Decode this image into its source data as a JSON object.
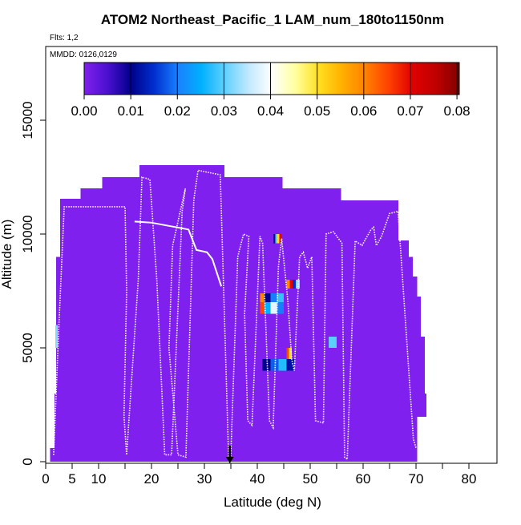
{
  "chart_data": {
    "type": "curtain",
    "title": "ATOM2 Northeast_Pacific_1 LAM_num_180to1150nm",
    "subtitle": "Flts: 1,2",
    "annotation": "MMDD: 0126,0129",
    "xlabel": "Latitude (deg N)",
    "ylabel": "Altitude (m)",
    "xlim": [
      0,
      85.3
    ],
    "ylim": [
      0,
      18240
    ],
    "xticks": [
      0,
      5,
      10,
      20,
      30,
      40,
      50,
      60,
      70,
      80
    ],
    "xminor_ticks": [
      15,
      25,
      35,
      45,
      55,
      65,
      75
    ],
    "yticks": [
      0,
      5000,
      10000,
      15000
    ],
    "arrow_x": 34.8,
    "colorbar": {
      "clim": [
        0,
        0.0805
      ],
      "colors": [
        "#8020ee",
        "#4a10d0",
        "#00008b",
        "#0030d0",
        "#1a80ff",
        "#00b0ff",
        "#60d0ff",
        "#c0e8ff",
        "#ffffff",
        "#ffffa0",
        "#ffe020",
        "#ffb000",
        "#ff8000",
        "#ff4000",
        "#e00000",
        "#c00000",
        "#800000"
      ],
      "ticks": [
        {
          "value": 0,
          "label": "0.00"
        },
        {
          "value": 0.01,
          "label": "0.01"
        },
        {
          "value": 0.02,
          "label": "0.02"
        },
        {
          "value": 0.03,
          "label": "0.03"
        },
        {
          "value": 0.04,
          "label": "0.04"
        },
        {
          "value": 0.05,
          "label": "0.05"
        },
        {
          "value": 0.06,
          "label": "0.06"
        },
        {
          "value": 0.07,
          "label": "0.07"
        },
        {
          "value": 0.08,
          "label": "0.08"
        }
      ]
    },
    "cells": [
      {
        "lat": [
          0.8,
          1.7
        ],
        "alt": [
          0,
          600
        ],
        "value": 0
      },
      {
        "lat": [
          1.7,
          2.0
        ],
        "alt": [
          0,
          3000
        ],
        "value": 0
      },
      {
        "lat": [
          2.0,
          2.7
        ],
        "alt": [
          0,
          9000
        ],
        "value": 0
      },
      {
        "lat": [
          2.7,
          6.6
        ],
        "alt": [
          0,
          11550
        ],
        "value": 0
      },
      {
        "lat": [
          6.6,
          10.7
        ],
        "alt": [
          0,
          12000
        ],
        "value": 0
      },
      {
        "lat": [
          10.7,
          17.7
        ],
        "alt": [
          0,
          12500
        ],
        "value": 0
      },
      {
        "lat": [
          17.7,
          33.8
        ],
        "alt": [
          0,
          13030
        ],
        "value": 0
      },
      {
        "lat": [
          33.8,
          44.8
        ],
        "alt": [
          0,
          12500
        ],
        "value": 0
      },
      {
        "lat": [
          44.8,
          55.8
        ],
        "alt": [
          0,
          12000
        ],
        "value": 0
      },
      {
        "lat": [
          55.8,
          66.7
        ],
        "alt": [
          0,
          11480
        ],
        "value": 0
      },
      {
        "lat": [
          66.7,
          68.6
        ],
        "alt": [
          0,
          9720
        ],
        "value": 0
      },
      {
        "lat": [
          68.6,
          69.4
        ],
        "alt": [
          0,
          9000
        ],
        "value": 0
      },
      {
        "lat": [
          69.4,
          70.2
        ],
        "alt": [
          0,
          8130
        ],
        "value": 0
      },
      {
        "lat": [
          70.2,
          70.9
        ],
        "alt": [
          1970,
          7250
        ],
        "value": 0
      },
      {
        "lat": [
          70.9,
          71.7
        ],
        "alt": [
          1970,
          5500
        ],
        "value": 0
      },
      {
        "lat": [
          71.7,
          72.0
        ],
        "alt": [
          1970,
          3000
        ],
        "value": 0
      },
      {
        "lat": [
          1.8,
          2.3
        ],
        "alt": [
          5000,
          6000
        ],
        "value": 0.032
      },
      {
        "lat": [
          43.0,
          43.4
        ],
        "alt": [
          9600,
          10000
        ],
        "value": 0.01
      },
      {
        "lat": [
          43.4,
          43.8
        ],
        "alt": [
          9600,
          10000
        ],
        "value": 0.03
      },
      {
        "lat": [
          43.8,
          44.2
        ],
        "alt": [
          9600,
          10000
        ],
        "value": 0.05
      },
      {
        "lat": [
          44.2,
          44.6
        ],
        "alt": [
          9600,
          10000
        ],
        "value": 0.07
      },
      {
        "lat": [
          40.5,
          41.3
        ],
        "alt": [
          7000,
          7400
        ],
        "value": 0.06
      },
      {
        "lat": [
          41.3,
          42.5
        ],
        "alt": [
          7000,
          7400
        ],
        "value": 0.01
      },
      {
        "lat": [
          42.5,
          43.7
        ],
        "alt": [
          7000,
          7400
        ],
        "value": 0.02
      },
      {
        "lat": [
          43.7,
          45.0
        ],
        "alt": [
          7000,
          7400
        ],
        "value": 0.028
      },
      {
        "lat": [
          40.5,
          41.3
        ],
        "alt": [
          6500,
          7000
        ],
        "value": 0.065
      },
      {
        "lat": [
          41.3,
          42.5
        ],
        "alt": [
          6500,
          7000
        ],
        "value": 0.025
      },
      {
        "lat": [
          42.5,
          43.7
        ],
        "alt": [
          6500,
          7000
        ],
        "value": 0.038
      },
      {
        "lat": [
          43.7,
          45.0
        ],
        "alt": [
          6500,
          7000
        ],
        "value": 0.02
      },
      {
        "lat": [
          45.5,
          46.1
        ],
        "alt": [
          7600,
          8000
        ],
        "value": 0.06
      },
      {
        "lat": [
          46.1,
          46.7
        ],
        "alt": [
          7600,
          8000
        ],
        "value": 0.07
      },
      {
        "lat": [
          46.7,
          47.3
        ],
        "alt": [
          7600,
          8000
        ],
        "value": 0.015
      },
      {
        "lat": [
          47.3,
          48.0
        ],
        "alt": [
          7600,
          8000
        ],
        "value": 0.033
      },
      {
        "lat": [
          41.0,
          42.5
        ],
        "alt": [
          4000,
          4500
        ],
        "value": 0.01
      },
      {
        "lat": [
          42.5,
          44.0
        ],
        "alt": [
          4000,
          4500
        ],
        "value": 0.018
      },
      {
        "lat": [
          44.0,
          45.5
        ],
        "alt": [
          4000,
          4500
        ],
        "value": 0.027
      },
      {
        "lat": [
          45.5,
          47.0
        ],
        "alt": [
          4000,
          4500
        ],
        "value": 0.012
      },
      {
        "lat": [
          45.5,
          46.0
        ],
        "alt": [
          4500,
          5000
        ],
        "value": 0.065
      },
      {
        "lat": [
          46.0,
          46.5
        ],
        "alt": [
          4500,
          5000
        ],
        "value": 0.05
      },
      {
        "lat": [
          53.5,
          55.0
        ],
        "alt": [
          5000,
          5500
        ],
        "value": 0.03
      }
    ],
    "track": {
      "color": "#ffffff",
      "x": [
        1.5,
        2.5,
        3.5,
        15.0,
        15.3,
        14.8,
        15.3,
        17.5,
        18.2,
        19.7,
        21.0,
        22.5,
        23.8,
        25.8,
        26.4,
        24.0,
        23.3,
        25.0,
        26.5,
        28.0,
        28.8,
        33.0,
        34.6,
        35.0,
        36.3,
        37.4,
        38.4,
        37.6,
        38.2,
        39.0,
        40.5,
        41.0,
        42.3,
        43.0,
        44.0,
        44.6,
        45.8,
        46.5,
        47.0,
        48.0,
        48.7,
        49.5,
        50.3,
        51.0,
        52.5,
        53.0,
        54.4,
        56.0,
        56.5,
        57.0,
        58.5,
        59.8,
        61.5,
        62.0,
        62.5,
        63.5,
        65.0,
        66.6,
        69.5,
        70.0,
        null,
        16.8,
        20.0,
        27.0,
        28.5,
        30.5,
        31.5,
        33.2
      ],
      "y": [
        300,
        6000,
        11200,
        11200,
        7500,
        2000,
        300,
        8000,
        12500,
        12400,
        8000,
        300,
        300,
        11000,
        12000,
        9500,
        5000,
        300,
        200,
        11500,
        12800,
        12600,
        0,
        300,
        9000,
        10000,
        9900,
        6500,
        1800,
        1600,
        9900,
        9600,
        1800,
        1500,
        8600,
        9800,
        7000,
        4500,
        4000,
        9000,
        9200,
        8500,
        9000,
        1800,
        1700,
        10000,
        10100,
        9600,
        200,
        100,
        9700,
        9500,
        10200,
        10300,
        9500,
        9900,
        10900,
        11000,
        1000,
        600,
        null,
        10550,
        10500,
        10200,
        9300,
        9200,
        8900,
        7700
      ]
    }
  }
}
